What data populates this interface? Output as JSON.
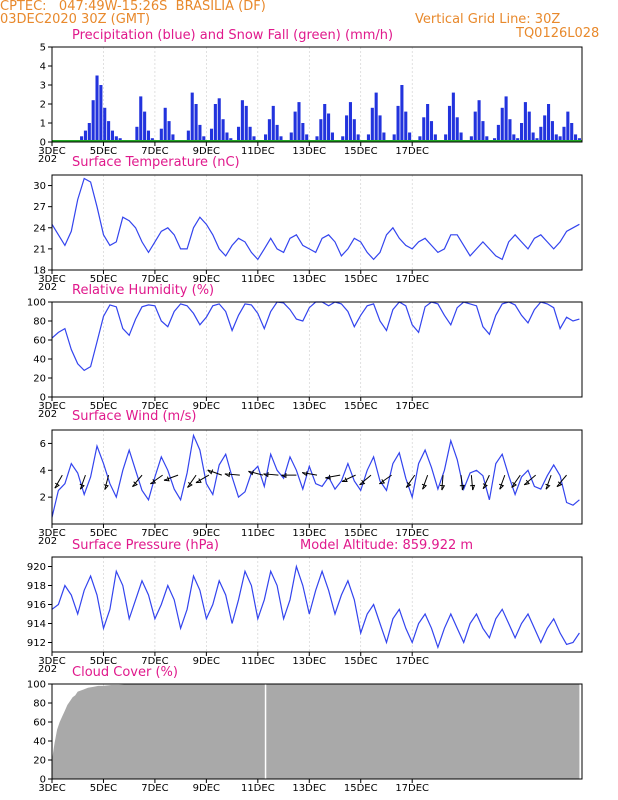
{
  "header": {
    "line1": "CPTEC:   047:49W-15:26S  BRASILIA (DF)",
    "line2": "03DEC2020 30Z (GMT)",
    "grid_note": "Vertical Grid Line: 30Z",
    "code": "TQ0126L028"
  },
  "panels": {
    "precip_title": "Precipitation (blue) and Snow Fall (green) (mm/h)",
    "temp_title": "Surface Temperature (nC)",
    "rh_title": "Relative Humidity (%)",
    "wind_title": "Surface Wind (m/s)",
    "pres_title": "Surface Pressure (hPa)",
    "altitude_note": "Model Altitude: 859.922 m",
    "cloud_title": "Cloud Cover (%)"
  },
  "colors": {
    "header": "#e8892c",
    "title": "#e0198c",
    "line": "#3344ee",
    "bar": "#2233dd",
    "snow": "#22aa22",
    "cloud": "#a9a9a9"
  },
  "x_ticks": [
    "3DEC",
    "5DEC",
    "7DEC",
    "9DEC",
    "11DEC",
    "13DEC",
    "15DEC",
    "17DEC"
  ],
  "x_year_stub": "202",
  "chart_data": [
    {
      "type": "bar",
      "title": "Precipitation (blue) and Snow Fall (green) (mm/h)",
      "x_unit": "days since 3DEC 00Z",
      "ylim": [
        0,
        5
      ],
      "yticks": [
        "0",
        "1",
        "2",
        "3",
        "4",
        "5"
      ],
      "x": [
        1.15,
        1.3,
        1.45,
        1.6,
        1.75,
        1.9,
        2.05,
        2.2,
        2.35,
        2.5,
        2.65,
        2.8,
        3.3,
        3.45,
        3.6,
        3.75,
        3.9,
        4.25,
        4.4,
        4.55,
        4.7,
        4.85,
        5.3,
        5.45,
        5.6,
        5.75,
        5.9,
        6.2,
        6.35,
        6.5,
        6.65,
        6.8,
        6.95,
        7.25,
        7.4,
        7.55,
        7.7,
        7.85,
        8.3,
        8.45,
        8.6,
        8.75,
        8.9,
        9.3,
        9.45,
        9.6,
        9.75,
        9.9,
        10.3,
        10.45,
        10.6,
        10.75,
        10.9,
        11.3,
        11.45,
        11.6,
        11.75,
        11.9,
        12.3,
        12.45,
        12.6,
        12.75,
        12.9,
        13.3,
        13.45,
        13.6,
        13.75,
        13.9,
        14.3,
        14.45,
        14.6,
        14.75,
        14.9,
        15.3,
        15.45,
        15.6,
        15.75,
        15.9,
        16.3,
        16.45,
        16.6,
        16.75,
        16.9,
        17.2,
        17.35,
        17.5,
        17.65,
        17.8,
        17.95,
        18.1,
        18.25,
        18.4,
        18.55,
        18.7,
        18.85,
        19.0,
        19.15,
        19.3,
        19.45,
        19.6,
        19.75,
        19.9,
        20.05,
        20.2,
        20.35,
        20.5
      ],
      "series": [
        {
          "name": "Precipitation",
          "values": [
            0.3,
            0.6,
            1.0,
            2.2,
            3.5,
            3.0,
            1.8,
            1.1,
            0.6,
            0.3,
            0.2,
            0.1,
            0.8,
            2.4,
            1.6,
            0.6,
            0.2,
            0.7,
            1.8,
            1.1,
            0.4,
            0.1,
            0.6,
            2.6,
            2.0,
            0.9,
            0.3,
            0.7,
            2.0,
            2.3,
            1.2,
            0.5,
            0.2,
            0.8,
            2.2,
            1.9,
            0.8,
            0.3,
            0.4,
            1.2,
            1.9,
            0.9,
            0.3,
            0.5,
            1.6,
            2.1,
            1.0,
            0.4,
            0.3,
            1.2,
            2.0,
            1.5,
            0.5,
            0.3,
            1.4,
            2.1,
            1.2,
            0.4,
            0.4,
            1.8,
            2.6,
            1.4,
            0.5,
            0.4,
            1.9,
            3.0,
            1.6,
            0.5,
            0.3,
            1.3,
            2.0,
            1.1,
            0.4,
            0.4,
            1.9,
            2.6,
            1.3,
            0.5,
            0.3,
            1.6,
            2.2,
            1.1,
            0.3,
            0.2,
            0.9,
            1.8,
            2.4,
            1.2,
            0.4,
            0.2,
            1.0,
            2.1,
            1.6,
            0.5,
            0.2,
            0.8,
            1.4,
            2.0,
            1.1,
            0.4,
            0.3,
            0.8,
            1.6,
            1.0,
            0.4,
            0.2
          ]
        }
      ]
    },
    {
      "type": "line",
      "title": "Surface Temperature (nC)",
      "ylim": [
        18,
        31.5
      ],
      "yticks": [
        "18",
        "21",
        "24",
        "27",
        "30"
      ],
      "x": [
        0,
        0.25,
        0.5,
        0.75,
        1.0,
        1.25,
        1.5,
        1.75,
        2.0,
        2.25,
        2.5,
        2.75,
        3.0,
        3.25,
        3.5,
        3.75,
        4.0,
        4.25,
        4.5,
        4.75,
        5.0,
        5.25,
        5.5,
        5.75,
        6.0,
        6.25,
        6.5,
        6.75,
        7.0,
        7.25,
        7.5,
        7.75,
        8.0,
        8.25,
        8.5,
        8.75,
        9.0,
        9.25,
        9.5,
        9.75,
        10.0,
        10.25,
        10.5,
        10.75,
        11.0,
        11.25,
        11.5,
        11.75,
        12.0,
        12.25,
        12.5,
        12.75,
        13.0,
        13.25,
        13.5,
        13.75,
        14.0,
        14.25,
        14.5,
        14.75,
        15.0,
        15.25,
        15.5,
        15.75,
        16.0,
        16.25,
        16.5,
        16.75,
        17.0,
        17.25,
        17.5,
        17.75,
        18.0,
        18.25,
        18.5,
        18.75,
        19.0,
        19.25,
        19.5,
        19.75,
        20.0,
        20.25,
        20.5
      ],
      "series": [
        {
          "name": "Temperature",
          "values": [
            24.5,
            23.0,
            21.5,
            23.5,
            28.0,
            31.0,
            30.5,
            27.0,
            23.0,
            21.5,
            22.0,
            25.5,
            25.0,
            24.0,
            22.0,
            20.5,
            22.0,
            23.5,
            24.0,
            23.0,
            21.0,
            21.0,
            24.0,
            25.5,
            24.5,
            23.0,
            21.0,
            20.0,
            21.5,
            22.5,
            22.0,
            20.5,
            19.5,
            21.0,
            22.5,
            21.0,
            20.5,
            22.5,
            23.0,
            21.5,
            21.0,
            20.5,
            22.5,
            23.0,
            22.0,
            20.0,
            21.0,
            22.5,
            22.0,
            20.5,
            19.5,
            20.5,
            23.0,
            24.0,
            22.5,
            21.5,
            21.0,
            22.0,
            22.5,
            21.5,
            20.5,
            21.0,
            23.0,
            23.0,
            21.5,
            20.0,
            21.0,
            22.0,
            21.0,
            20.0,
            19.5,
            22.0,
            23.0,
            22.0,
            21.0,
            22.5,
            23.0,
            22.0,
            21.0,
            22.0,
            23.5,
            24.0,
            24.5
          ]
        }
      ]
    },
    {
      "type": "line",
      "title": "Relative Humidity (%)",
      "ylim": [
        0,
        100
      ],
      "yticks": [
        "0",
        "20",
        "40",
        "60",
        "80",
        "100"
      ],
      "x": [
        0,
        0.25,
        0.5,
        0.75,
        1.0,
        1.25,
        1.5,
        1.75,
        2.0,
        2.25,
        2.5,
        2.75,
        3.0,
        3.25,
        3.5,
        3.75,
        4.0,
        4.25,
        4.5,
        4.75,
        5.0,
        5.25,
        5.5,
        5.75,
        6.0,
        6.25,
        6.5,
        6.75,
        7.0,
        7.25,
        7.5,
        7.75,
        8.0,
        8.25,
        8.5,
        8.75,
        9.0,
        9.25,
        9.5,
        9.75,
        10.0,
        10.25,
        10.5,
        10.75,
        11.0,
        11.25,
        11.5,
        11.75,
        12.0,
        12.25,
        12.5,
        12.75,
        13.0,
        13.25,
        13.5,
        13.75,
        14.0,
        14.25,
        14.5,
        14.75,
        15.0,
        15.25,
        15.5,
        15.75,
        16.0,
        16.25,
        16.5,
        16.75,
        17.0,
        17.25,
        17.5,
        17.75,
        18.0,
        18.25,
        18.5,
        18.75,
        19.0,
        19.25,
        19.5,
        19.75,
        20.0,
        20.25,
        20.5
      ],
      "series": [
        {
          "name": "Relative Humidity",
          "values": [
            62,
            68,
            72,
            50,
            35,
            28,
            32,
            58,
            85,
            97,
            95,
            72,
            65,
            82,
            95,
            97,
            96,
            80,
            74,
            90,
            98,
            96,
            88,
            76,
            84,
            96,
            98,
            90,
            70,
            86,
            98,
            97,
            88,
            72,
            90,
            100,
            99,
            92,
            82,
            80,
            94,
            100,
            100,
            96,
            100,
            98,
            90,
            74,
            86,
            96,
            98,
            80,
            70,
            92,
            100,
            96,
            76,
            68,
            95,
            100,
            98,
            86,
            76,
            94,
            100,
            98,
            96,
            74,
            66,
            86,
            98,
            100,
            97,
            86,
            78,
            92,
            100,
            98,
            94,
            72,
            84,
            80,
            82
          ]
        }
      ]
    },
    {
      "type": "line",
      "title": "Surface Wind (m/s)",
      "ylim": [
        0,
        7
      ],
      "yticks": [
        "2",
        "4",
        "6"
      ],
      "x": [
        0,
        0.25,
        0.5,
        0.75,
        1.0,
        1.25,
        1.5,
        1.75,
        2.0,
        2.25,
        2.5,
        2.75,
        3.0,
        3.25,
        3.5,
        3.75,
        4.0,
        4.25,
        4.5,
        4.75,
        5.0,
        5.25,
        5.5,
        5.75,
        6.0,
        6.25,
        6.5,
        6.75,
        7.0,
        7.25,
        7.5,
        7.75,
        8.0,
        8.25,
        8.5,
        8.75,
        9.0,
        9.25,
        9.5,
        9.75,
        10.0,
        10.25,
        10.5,
        10.75,
        11.0,
        11.25,
        11.5,
        11.75,
        12.0,
        12.25,
        12.5,
        12.75,
        13.0,
        13.25,
        13.5,
        13.75,
        14.0,
        14.25,
        14.5,
        14.75,
        15.0,
        15.25,
        15.5,
        15.75,
        16.0,
        16.25,
        16.5,
        16.75,
        17.0,
        17.25,
        17.5,
        17.75,
        18.0,
        18.25,
        18.5,
        18.75,
        19.0,
        19.25,
        19.5,
        19.75,
        20.0,
        20.25,
        20.5
      ],
      "series": [
        {
          "name": "Wind speed",
          "values": [
            0.5,
            2.5,
            3.0,
            4.5,
            3.8,
            2.2,
            3.5,
            5.8,
            4.5,
            3.0,
            2.0,
            4.0,
            5.5,
            4.0,
            2.5,
            1.8,
            3.5,
            5.0,
            4.0,
            2.6,
            1.8,
            3.8,
            6.6,
            5.5,
            3.0,
            2.2,
            4.4,
            5.2,
            3.5,
            2.0,
            2.4,
            3.8,
            4.3,
            2.8,
            5.2,
            4.0,
            3.4,
            5.0,
            4.0,
            2.6,
            4.3,
            3.0,
            2.8,
            3.5,
            2.6,
            3.2,
            4.5,
            3.2,
            2.5,
            4.0,
            5.0,
            3.2,
            2.5,
            4.5,
            5.3,
            3.4,
            2.0,
            4.5,
            5.5,
            4.2,
            2.6,
            4.0,
            6.2,
            4.8,
            2.6,
            3.8,
            4.0,
            3.6,
            1.8,
            4.5,
            5.2,
            3.6,
            2.2,
            3.5,
            4.0,
            2.8,
            2.6,
            3.6,
            4.4,
            3.6,
            1.6,
            1.4,
            1.8
          ]
        }
      ],
      "vectors_x": [
        0.4,
        1.3,
        2.2,
        3.5,
        4.3,
        4.9,
        5.6,
        6.1,
        6.6,
        7.3,
        8.2,
        8.8,
        9.5,
        10.3,
        11.2,
        11.8,
        12.4,
        13.2,
        14.1,
        14.6,
        15.2,
        15.9,
        16.3,
        17.0,
        17.6,
        18.2,
        18.8,
        19.4,
        20.0
      ],
      "vectors_angle_deg": [
        240,
        250,
        255,
        230,
        215,
        200,
        235,
        210,
        160,
        175,
        165,
        175,
        180,
        170,
        190,
        205,
        220,
        215,
        235,
        250,
        265,
        275,
        275,
        245,
        250,
        235,
        220,
        250,
        230
      ]
    },
    {
      "type": "line",
      "title": "Surface Pressure (hPa)",
      "ylim": [
        911,
        921
      ],
      "yticks": [
        "912",
        "914",
        "916",
        "918",
        "920"
      ],
      "x": [
        0,
        0.25,
        0.5,
        0.75,
        1.0,
        1.25,
        1.5,
        1.75,
        2.0,
        2.25,
        2.5,
        2.75,
        3.0,
        3.25,
        3.5,
        3.75,
        4.0,
        4.25,
        4.5,
        4.75,
        5.0,
        5.25,
        5.5,
        5.75,
        6.0,
        6.25,
        6.5,
        6.75,
        7.0,
        7.25,
        7.5,
        7.75,
        8.0,
        8.25,
        8.5,
        8.75,
        9.0,
        9.25,
        9.5,
        9.75,
        10.0,
        10.25,
        10.5,
        10.75,
        11.0,
        11.25,
        11.5,
        11.75,
        12.0,
        12.25,
        12.5,
        12.75,
        13.0,
        13.25,
        13.5,
        13.75,
        14.0,
        14.25,
        14.5,
        14.75,
        15.0,
        15.25,
        15.5,
        15.75,
        16.0,
        16.25,
        16.5,
        16.75,
        17.0,
        17.25,
        17.5,
        17.75,
        18.0,
        18.25,
        18.5,
        18.75,
        19.0,
        19.25,
        19.5,
        19.75,
        20.0,
        20.25,
        20.5
      ],
      "series": [
        {
          "name": "Pressure",
          "values": [
            915.5,
            916.0,
            918.0,
            917.0,
            915.0,
            917.5,
            919.0,
            917.0,
            913.5,
            915.5,
            919.5,
            918.0,
            914.5,
            916.5,
            918.5,
            917.0,
            914.5,
            916.0,
            918.0,
            916.5,
            913.5,
            915.5,
            919.0,
            917.5,
            914.5,
            916.0,
            918.5,
            917.0,
            914.0,
            916.5,
            919.5,
            918.0,
            914.5,
            916.5,
            919.5,
            918.0,
            914.5,
            916.5,
            920.0,
            918.0,
            915.0,
            917.5,
            919.5,
            917.5,
            915.0,
            917.0,
            918.5,
            916.5,
            913.0,
            915.0,
            916.0,
            914.0,
            912.0,
            914.5,
            915.5,
            913.5,
            912.0,
            914.0,
            915.0,
            913.5,
            911.5,
            913.5,
            915.0,
            913.5,
            912.0,
            914.0,
            915.0,
            913.5,
            912.5,
            914.5,
            915.5,
            914.0,
            912.5,
            914.0,
            915.0,
            913.5,
            912.0,
            913.5,
            914.5,
            913.0,
            911.8,
            912.0,
            913.0
          ]
        }
      ]
    },
    {
      "type": "area",
      "title": "Cloud Cover (%)",
      "ylim": [
        0,
        100
      ],
      "yticks": [
        "0",
        "20",
        "40",
        "60",
        "80",
        "100"
      ],
      "x": [
        0,
        0.1,
        0.2,
        0.3,
        0.4,
        0.5,
        0.6,
        0.7,
        0.8,
        0.9,
        1.0,
        1.2,
        1.4,
        1.6,
        1.8,
        2.0,
        2.3,
        2.6,
        3.0,
        4.0,
        5.0,
        6.0,
        7.0,
        7.5,
        8.0,
        9.0,
        10.0,
        11.0,
        12.0,
        13.0,
        14.0,
        15.0,
        16.0,
        17.0,
        18.0,
        19.0,
        20.0,
        20.5
      ],
      "series": [
        {
          "name": "Cloud Cover",
          "values": [
            20,
            38,
            52,
            60,
            66,
            72,
            78,
            82,
            86,
            88,
            92,
            94,
            96,
            97,
            98,
            98,
            99,
            99,
            100,
            100,
            100,
            100,
            100,
            100,
            100,
            100,
            100,
            100,
            100,
            100,
            100,
            100,
            100,
            100,
            100,
            100,
            100,
            100
          ]
        }
      ]
    }
  ]
}
